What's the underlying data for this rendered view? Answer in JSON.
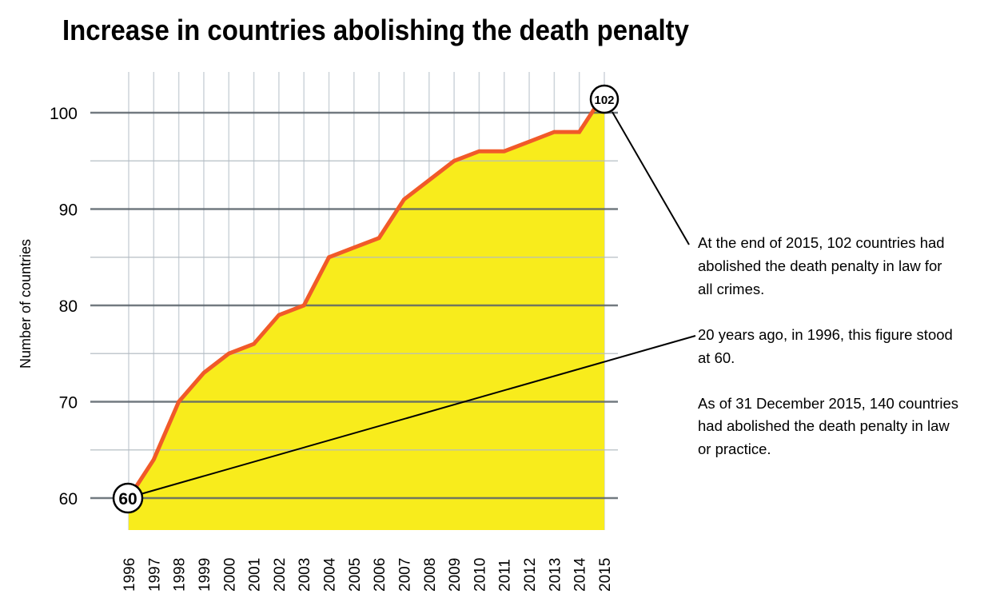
{
  "chart_data": {
    "type": "area",
    "title": "Increase in countries abolishing the death penalty",
    "xlabel": "",
    "ylabel": "Number of countries",
    "x": [
      "1996",
      "1997",
      "1998",
      "1999",
      "2000",
      "2001",
      "2002",
      "2003",
      "2004",
      "2005",
      "2006",
      "2007",
      "2008",
      "2009",
      "2010",
      "2011",
      "2012",
      "2013",
      "2014",
      "2015"
    ],
    "values": [
      60,
      64,
      70,
      73,
      75,
      76,
      79,
      80,
      85,
      86,
      87,
      91,
      93,
      95,
      96,
      96,
      97,
      98,
      98,
      102
    ],
    "ylim": [
      56.7,
      104
    ],
    "yticks": [
      "60",
      "70",
      "80",
      "90",
      "100"
    ],
    "ytick_values": [
      60,
      70,
      80,
      90,
      100
    ],
    "minor_gridlines": [
      65,
      75,
      85,
      95
    ],
    "grid": true,
    "legend": "none",
    "colors": {
      "line": "#f15a29",
      "fill": "#f8ec1c",
      "major_grid": "#5a636b",
      "minor_grid": "#b4bcc3",
      "vertical_grid": "#cdd4da"
    },
    "markers": {
      "start_label": "60",
      "end_label": "102"
    },
    "annotations": {
      "end": [
        "At the end of 2015, 102 countries had",
        "abolished the death penalty in law for",
        "all crimes."
      ],
      "start": [
        "20 years ago, in 1996, this figure stood",
        "at 60."
      ],
      "extra": [
        "As of 31 December 2015, 140 countries",
        "had abolished the death penalty in law",
        "or practice."
      ]
    }
  }
}
